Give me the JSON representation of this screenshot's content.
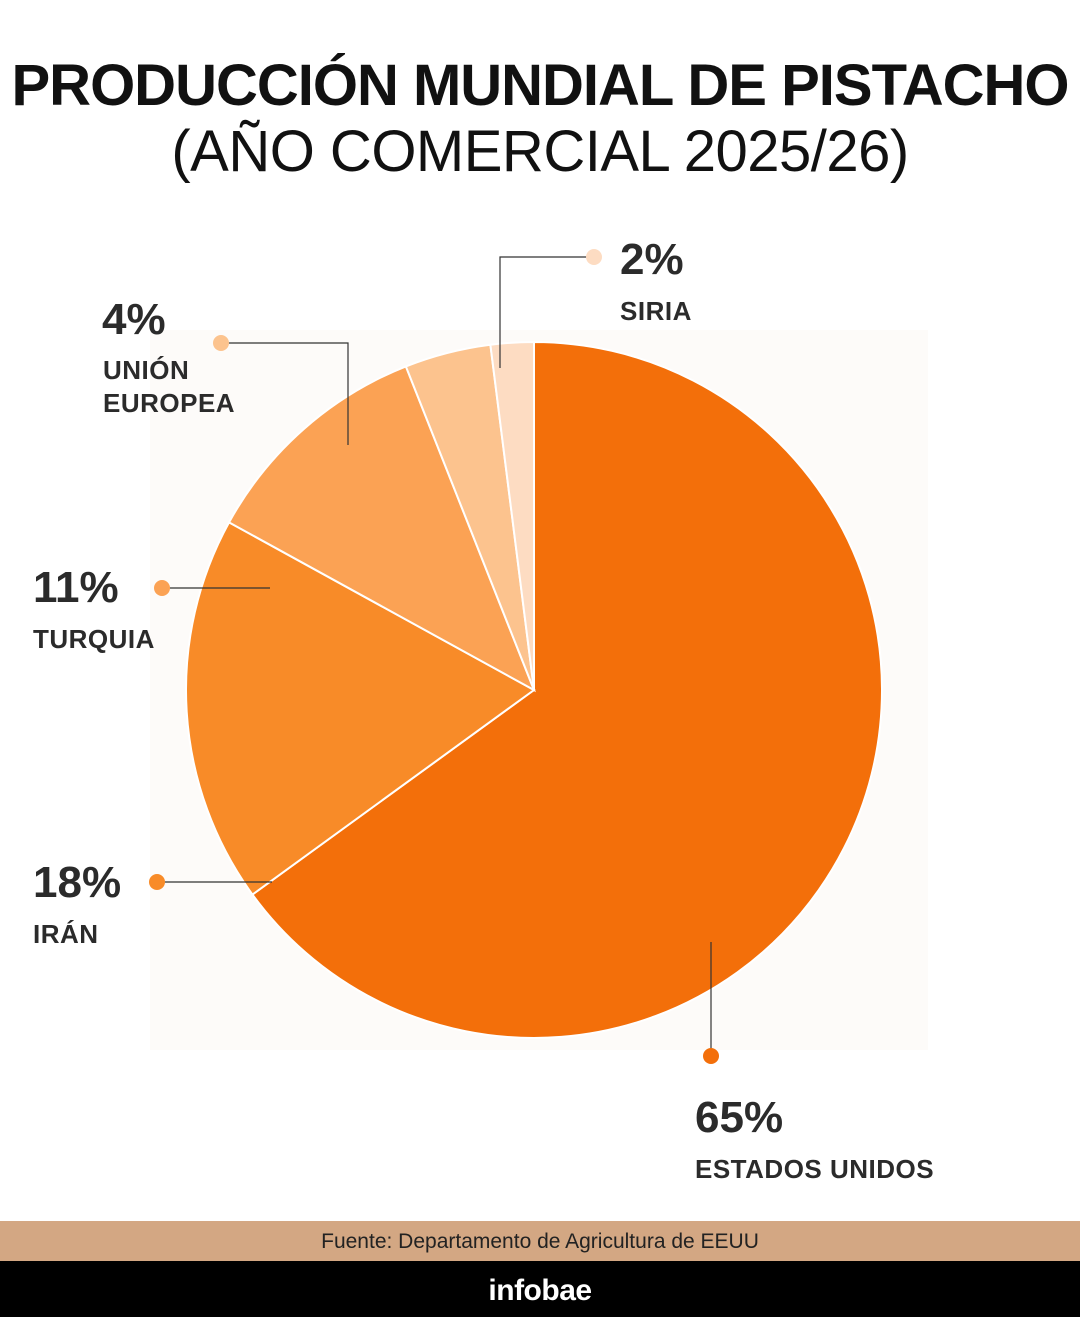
{
  "header": {
    "title_line1": "PRODUCCIÓN MUNDIAL DE PISTACHO",
    "title_line2": "(AÑO COMERCIAL 2025/26)"
  },
  "chart_data": {
    "type": "pie",
    "slices": [
      {
        "label": "ESTADOS UNIDOS",
        "value": 65,
        "display": "65%",
        "color": "#f36f0a"
      },
      {
        "label": "IRÁN",
        "value": 18,
        "display": "18%",
        "color": "#f88b28"
      },
      {
        "label": "TURQUIA",
        "value": 11,
        "display": "11%",
        "color": "#fba254"
      },
      {
        "label": "UNIÓN EUROPEA",
        "value": 4,
        "display": "4%",
        "color": "#fcc38e"
      },
      {
        "label": "SIRIA",
        "value": 2,
        "display": "2%",
        "color": "#fddcc2"
      }
    ]
  },
  "footer": {
    "source": "Fuente: Departamento de Agricultura de EEUU",
    "brand": "infobae"
  }
}
